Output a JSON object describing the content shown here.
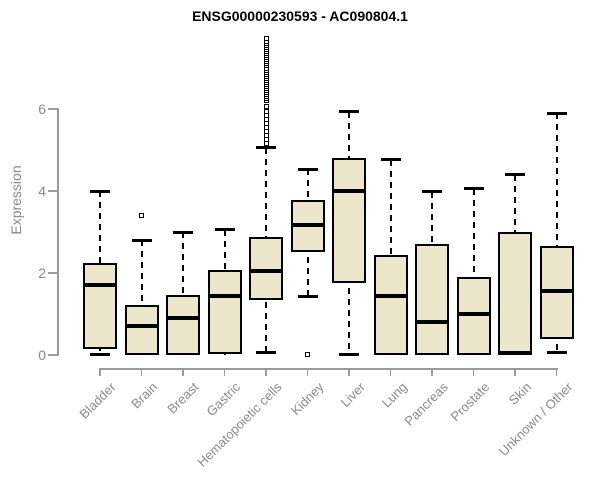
{
  "title": "ENSG00000230593 - AC090804.1",
  "chart_data": {
    "type": "boxplot",
    "title": "ENSG00000230593 - AC090804.1",
    "ylabel": "Expression",
    "xlabel": "",
    "ylim": [
      0,
      6
    ],
    "yticks": [
      0,
      2,
      4,
      6
    ],
    "grid": false,
    "legend": "none",
    "box_fill_color": "#ECE6CB",
    "box_line_color": "#000000",
    "axis_color": "#9a9a9a",
    "label_color": "#8a8a8a",
    "categories": [
      "Bladder",
      "Brain",
      "Breast",
      "Gastric",
      "Hematopoietic cells",
      "Kidney",
      "Liver",
      "Lung",
      "Pancreas",
      "Prostate",
      "Skin",
      "Unknown / Other"
    ],
    "series": [
      {
        "category": "Bladder",
        "whisker_low": 0.02,
        "q1": 0.15,
        "median": 1.7,
        "q3": 2.25,
        "whisker_high": 4.0,
        "outliers": []
      },
      {
        "category": "Brain",
        "whisker_low": 0.0,
        "q1": 0.0,
        "median": 0.7,
        "q3": 1.22,
        "whisker_high": 2.8,
        "outliers": [
          3.4
        ]
      },
      {
        "category": "Breast",
        "whisker_low": 0.0,
        "q1": 0.0,
        "median": 0.9,
        "q3": 1.47,
        "whisker_high": 3.0,
        "outliers": []
      },
      {
        "category": "Gastric",
        "whisker_low": 0.0,
        "q1": 0.03,
        "median": 1.45,
        "q3": 2.07,
        "whisker_high": 3.05,
        "outliers": []
      },
      {
        "category": "Hematopoietic cells",
        "whisker_low": 0.05,
        "q1": 1.34,
        "median": 2.05,
        "q3": 2.88,
        "whisker_high": 5.05,
        "outliers": [
          5.15,
          5.25,
          5.35,
          5.45,
          5.55,
          5.65,
          5.75,
          5.85,
          5.95,
          6.05,
          6.2,
          6.25,
          6.3,
          6.35,
          6.4,
          6.45,
          6.5,
          6.55,
          6.6,
          6.65,
          6.7,
          6.75,
          6.8,
          6.85,
          6.9,
          6.95,
          7.0,
          7.05,
          7.1,
          7.15,
          7.2,
          7.25,
          7.3,
          7.35,
          7.4,
          7.45,
          7.5,
          7.55,
          7.6,
          7.65,
          7.73
        ]
      },
      {
        "category": "Kidney",
        "whisker_low": 1.42,
        "q1": 2.52,
        "median": 3.17,
        "q3": 3.78,
        "whisker_high": 4.53,
        "outliers": [
          0.02
        ]
      },
      {
        "category": "Liver",
        "whisker_low": 0.02,
        "q1": 1.75,
        "median": 4.0,
        "q3": 4.8,
        "whisker_high": 5.93,
        "outliers": []
      },
      {
        "category": "Lung",
        "whisker_low": 0.0,
        "q1": 0.0,
        "median": 1.45,
        "q3": 2.45,
        "whisker_high": 4.76,
        "outliers": []
      },
      {
        "category": "Pancreas",
        "whisker_low": 0.0,
        "q1": 0.0,
        "median": 0.8,
        "q3": 2.7,
        "whisker_high": 3.98,
        "outliers": []
      },
      {
        "category": "Prostate",
        "whisker_low": 0.0,
        "q1": 0.0,
        "median": 1.0,
        "q3": 1.9,
        "whisker_high": 4.05,
        "outliers": []
      },
      {
        "category": "Skin",
        "whisker_low": 0.0,
        "q1": 0.0,
        "median": 0.05,
        "q3": 3.0,
        "whisker_high": 4.4,
        "outliers": []
      },
      {
        "category": "Unknown / Other",
        "whisker_low": 0.05,
        "q1": 0.4,
        "median": 1.55,
        "q3": 2.65,
        "whisker_high": 5.9,
        "outliers": []
      }
    ]
  }
}
